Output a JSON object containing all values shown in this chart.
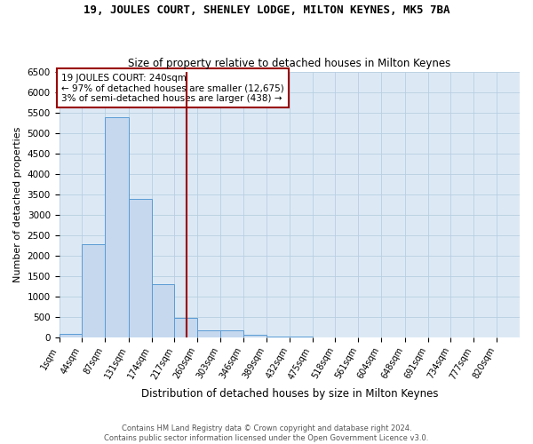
{
  "title_line1": "19, JOULES COURT, SHENLEY LODGE, MILTON KEYNES, MK5 7BA",
  "title_line2": "Size of property relative to detached houses in Milton Keynes",
  "xlabel": "Distribution of detached houses by size in Milton Keynes",
  "ylabel": "Number of detached properties",
  "footer_line1": "Contains HM Land Registry data © Crown copyright and database right 2024.",
  "footer_line2": "Contains public sector information licensed under the Open Government Licence v3.0.",
  "annotation_line1": "19 JOULES COURT: 240sqm",
  "annotation_line2": "← 97% of detached houses are smaller (12,675)",
  "annotation_line3": "3% of semi-detached houses are larger (438) →",
  "property_size": 240,
  "bin_edges": [
    1,
    44,
    87,
    131,
    174,
    217,
    260,
    303,
    346,
    389,
    432,
    475,
    518,
    561,
    604,
    648,
    691,
    734,
    777,
    820,
    863
  ],
  "bin_counts": [
    75,
    2270,
    5400,
    3400,
    1300,
    480,
    175,
    165,
    50,
    20,
    10,
    5,
    3,
    2,
    1,
    1,
    1,
    0,
    0,
    0
  ],
  "bar_color": "#c5d8ee",
  "bar_edge_color": "#5b9bd5",
  "vline_color": "#990000",
  "vline_x": 240,
  "annotation_box_color": "#990000",
  "ylim": [
    0,
    6500
  ],
  "grid_color": "#b8cfe0",
  "background_color": "#dce9f5"
}
